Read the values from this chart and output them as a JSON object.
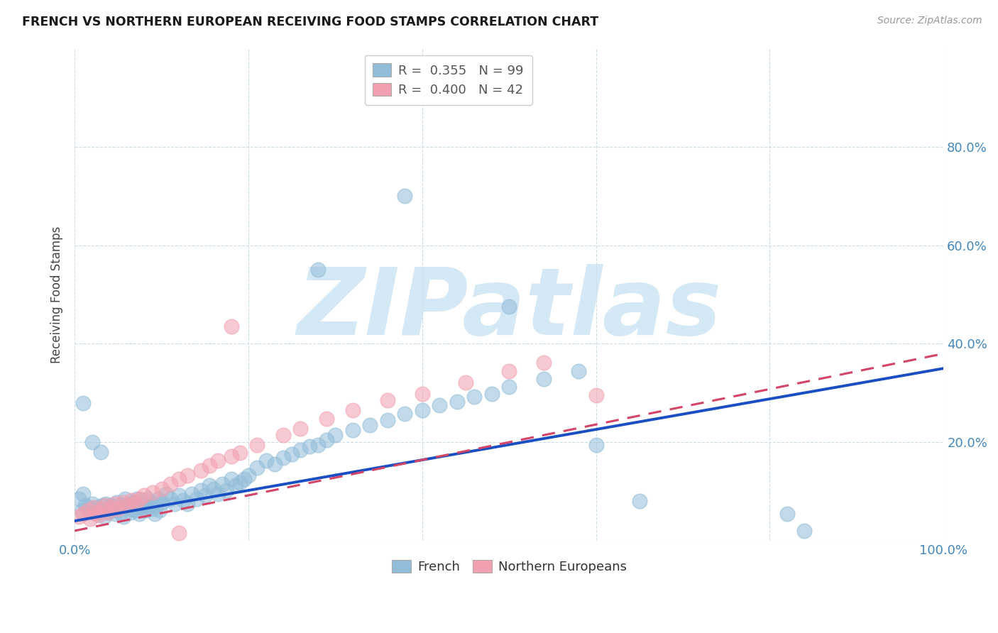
{
  "title": "FRENCH VS NORTHERN EUROPEAN RECEIVING FOOD STAMPS CORRELATION CHART",
  "source": "Source: ZipAtlas.com",
  "ylabel": "Receiving Food Stamps",
  "french_R": 0.355,
  "french_N": 99,
  "northern_R": 0.4,
  "northern_N": 42,
  "french_color": "#92BDD9",
  "northern_color": "#F2A0B0",
  "french_line_color": "#1A4FC4",
  "northern_line_color": "#D44466",
  "background_color": "#FFFFFF",
  "watermark_text": "ZIPatlas",
  "watermark_color": "#D5E8F5",
  "tick_color": "#4488BB",
  "grid_color": "#CCDDE8",
  "xlim": [
    0.0,
    1.0
  ],
  "ylim": [
    0.0,
    1.0
  ],
  "right_ytick_vals": [
    0.2,
    0.4,
    0.6,
    0.8
  ],
  "right_ytick_labels": [
    "20.0%",
    "40.0%",
    "60.0%",
    "80.0%"
  ],
  "fr_intercept": 0.04,
  "fr_slope": 0.31,
  "no_intercept": 0.02,
  "no_slope": 0.36,
  "french_x": [
    0.005,
    0.008,
    0.01,
    0.012,
    0.015,
    0.018,
    0.02,
    0.022,
    0.024,
    0.025,
    0.028,
    0.03,
    0.032,
    0.034,
    0.035,
    0.036,
    0.038,
    0.04,
    0.042,
    0.044,
    0.046,
    0.048,
    0.05,
    0.052,
    0.054,
    0.056,
    0.058,
    0.06,
    0.062,
    0.064,
    0.066,
    0.068,
    0.07,
    0.072,
    0.074,
    0.076,
    0.078,
    0.08,
    0.082,
    0.084,
    0.086,
    0.088,
    0.09,
    0.092,
    0.094,
    0.096,
    0.098,
    0.1,
    0.105,
    0.11,
    0.115,
    0.12,
    0.125,
    0.13,
    0.135,
    0.14,
    0.145,
    0.15,
    0.155,
    0.16,
    0.165,
    0.17,
    0.175,
    0.18,
    0.185,
    0.19,
    0.195,
    0.2,
    0.21,
    0.22,
    0.23,
    0.24,
    0.25,
    0.26,
    0.27,
    0.28,
    0.29,
    0.3,
    0.32,
    0.34,
    0.36,
    0.38,
    0.4,
    0.42,
    0.44,
    0.46,
    0.48,
    0.5,
    0.54,
    0.58,
    0.01,
    0.38,
    0.28,
    0.5,
    0.6,
    0.65,
    0.82,
    0.84,
    0.02,
    0.03
  ],
  "french_y": [
    0.085,
    0.06,
    0.095,
    0.072,
    0.068,
    0.058,
    0.075,
    0.062,
    0.055,
    0.068,
    0.065,
    0.058,
    0.072,
    0.048,
    0.062,
    0.075,
    0.058,
    0.068,
    0.072,
    0.062,
    0.055,
    0.078,
    0.065,
    0.058,
    0.072,
    0.048,
    0.085,
    0.068,
    0.075,
    0.058,
    0.065,
    0.078,
    0.062,
    0.085,
    0.055,
    0.068,
    0.075,
    0.072,
    0.062,
    0.085,
    0.068,
    0.078,
    0.065,
    0.055,
    0.072,
    0.085,
    0.062,
    0.078,
    0.095,
    0.085,
    0.075,
    0.092,
    0.082,
    0.075,
    0.095,
    0.085,
    0.102,
    0.092,
    0.112,
    0.105,
    0.095,
    0.115,
    0.102,
    0.125,
    0.112,
    0.118,
    0.125,
    0.132,
    0.148,
    0.162,
    0.155,
    0.168,
    0.175,
    0.185,
    0.192,
    0.195,
    0.205,
    0.215,
    0.225,
    0.235,
    0.245,
    0.258,
    0.265,
    0.275,
    0.282,
    0.292,
    0.298,
    0.312,
    0.328,
    0.345,
    0.28,
    0.7,
    0.55,
    0.475,
    0.195,
    0.08,
    0.055,
    0.02,
    0.2,
    0.18
  ],
  "northern_x": [
    0.005,
    0.01,
    0.015,
    0.018,
    0.022,
    0.025,
    0.028,
    0.032,
    0.035,
    0.038,
    0.042,
    0.046,
    0.05,
    0.055,
    0.06,
    0.065,
    0.07,
    0.075,
    0.08,
    0.09,
    0.1,
    0.11,
    0.12,
    0.13,
    0.145,
    0.155,
    0.165,
    0.18,
    0.19,
    0.21,
    0.24,
    0.26,
    0.29,
    0.32,
    0.36,
    0.4,
    0.45,
    0.5,
    0.54,
    0.6,
    0.18,
    0.12
  ],
  "northern_y": [
    0.048,
    0.055,
    0.062,
    0.045,
    0.068,
    0.058,
    0.052,
    0.065,
    0.072,
    0.058,
    0.068,
    0.075,
    0.065,
    0.078,
    0.072,
    0.082,
    0.078,
    0.085,
    0.092,
    0.098,
    0.105,
    0.115,
    0.125,
    0.132,
    0.142,
    0.152,
    0.162,
    0.172,
    0.178,
    0.195,
    0.215,
    0.228,
    0.248,
    0.265,
    0.285,
    0.298,
    0.322,
    0.345,
    0.362,
    0.295,
    0.435,
    0.015
  ]
}
